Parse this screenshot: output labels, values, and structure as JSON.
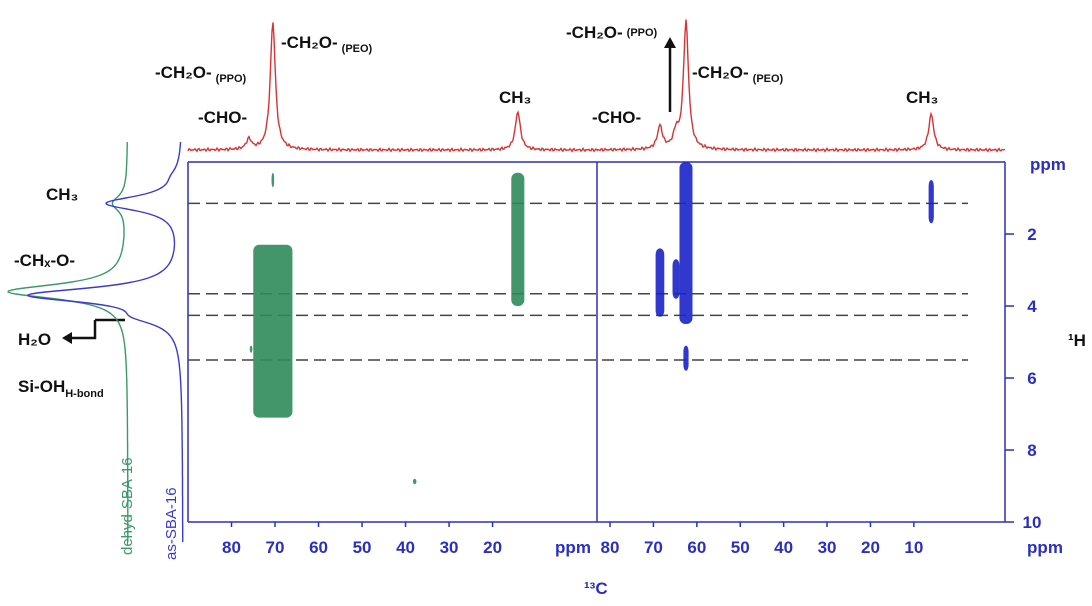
{
  "chart_data": {
    "type": "hetcor",
    "x_title": "¹³C",
    "y_title": "¹H",
    "y_unit": "ppm",
    "x_unit": "ppm",
    "axis_color": "#2b2fc0",
    "top_color": "#d63333",
    "ylim": [
      0,
      10
    ],
    "yticks": [
      2,
      4,
      6,
      8,
      10
    ],
    "dashed_lines": [
      1.15,
      3.66,
      4.26,
      5.5
    ],
    "panels": [
      {
        "color": "#2e8b5a",
        "xlim": [
          90,
          -4
        ],
        "xticks": [
          80,
          70,
          60,
          50,
          40,
          30,
          20
        ],
        "top_peaks": [
          {
            "x": 70.5,
            "height": 100
          },
          {
            "x": 76,
            "height": 8
          },
          {
            "x": 14.2,
            "height": 30
          }
        ],
        "cross_peaks": [
          {
            "x": 70.5,
            "y": [
              0.3,
              0.7
            ],
            "w": 0.3
          },
          {
            "x": 70.5,
            "y": [
              2.3,
              7.1
            ],
            "w": 4.5
          },
          {
            "x": 14.2,
            "y": [
              0.3,
              4.0
            ],
            "w": 1.5
          },
          {
            "x": 75.5,
            "y": [
              5.1,
              5.3
            ],
            "w": 0.3
          },
          {
            "x": 37.9,
            "y": [
              8.8,
              8.95
            ],
            "w": 0.4
          }
        ]
      },
      {
        "color": "#1a22c8",
        "xlim": [
          83,
          -11
        ],
        "xticks": [
          80,
          70,
          60,
          50,
          40,
          30,
          20,
          10
        ],
        "top_peaks": [
          {
            "x": 62.5,
            "height": 100
          },
          {
            "x": 68.5,
            "height": 18
          },
          {
            "x": 64.8,
            "height": 12
          },
          {
            "x": 6.0,
            "height": 28
          }
        ],
        "cross_peaks": [
          {
            "x": 62.5,
            "y": [
              0,
              4.5
            ],
            "w": 1.5
          },
          {
            "x": 62.5,
            "y": [
              5.1,
              5.8
            ],
            "w": 0.6
          },
          {
            "x": 68.5,
            "y": [
              2.4,
              4.3
            ],
            "w": 1.0
          },
          {
            "x": 64.8,
            "y": [
              2.7,
              3.8
            ],
            "w": 0.8
          },
          {
            "x": 6.0,
            "y": [
              0.5,
              1.7
            ],
            "w": 0.6
          }
        ]
      }
    ],
    "projections": [
      {
        "name": "dehyd-SBA-16",
        "color": "#3a9a6a",
        "peaks": [
          {
            "x": 1.15,
            "height": 12
          },
          {
            "x": 3.6,
            "height": 100
          }
        ]
      },
      {
        "name": "as-SBA-16",
        "color": "#3a3ad0",
        "peaks": [
          {
            "x": 0.4,
            "height": 3
          },
          {
            "x": 1.15,
            "height": 50
          },
          {
            "x": 3.7,
            "height": 100
          },
          {
            "x": 4.3,
            "height": 20
          }
        ]
      }
    ],
    "top_labels": [
      {
        "text": "-CH₂O-",
        "sub": "(PEO)"
      },
      {
        "text": "-CH₂O-",
        "sub": "(PPO)"
      },
      {
        "text": "-CHO-"
      },
      {
        "text": "CH₃"
      },
      {
        "text": "-CHO-"
      },
      {
        "text": "-CH₂O-",
        "sub": "(PPO)"
      },
      {
        "text": "-CH₂O-",
        "sub": "(PEO)"
      },
      {
        "text": "CH₃"
      }
    ],
    "side_labels": [
      "CH₃",
      "-CHₓ-O-",
      "H₂O",
      "Si-OH",
      "H-bond"
    ]
  }
}
